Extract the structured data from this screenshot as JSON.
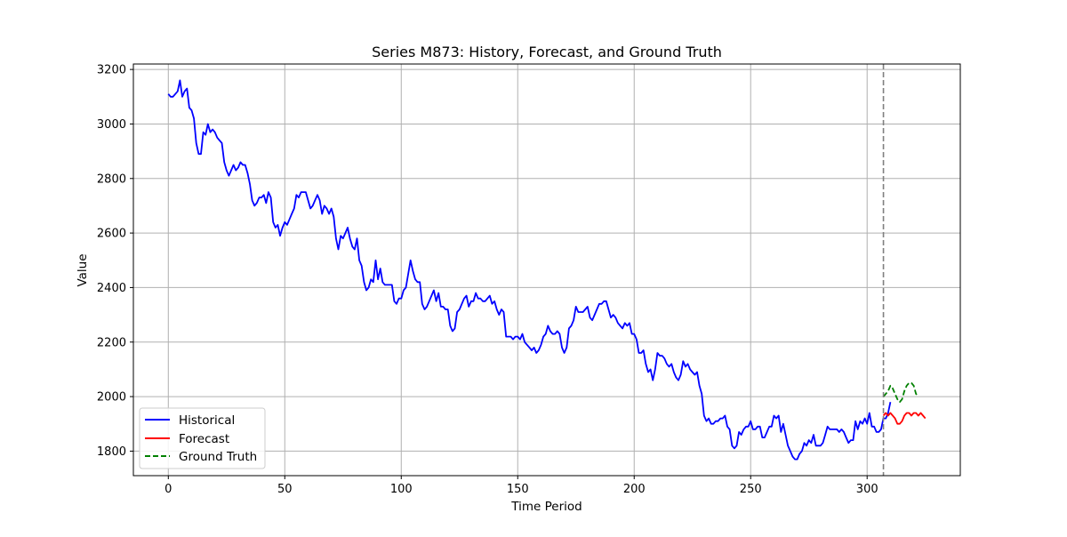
{
  "chart_data": {
    "type": "line",
    "title": "Series M873: History, Forecast, and Ground Truth",
    "xlabel": "Time Period",
    "ylabel": "Value",
    "xlim": [
      -15,
      340
    ],
    "ylim": [
      1710,
      3220
    ],
    "xticks": [
      0,
      50,
      100,
      150,
      200,
      250,
      300
    ],
    "yticks": [
      1800,
      2000,
      2200,
      2400,
      2600,
      2800,
      3000,
      3200
    ],
    "grid": true,
    "legend_position": "lower-left",
    "vline_x": 307,
    "series": [
      {
        "name": "Historical",
        "color": "#0000ff",
        "style": "solid",
        "x_start": 0,
        "values": [
          3110,
          3100,
          3100,
          3110,
          3120,
          3160,
          3100,
          3120,
          3130,
          3060,
          3050,
          3020,
          2930,
          2890,
          2890,
          2970,
          2960,
          3000,
          2970,
          2980,
          2970,
          2950,
          2940,
          2930,
          2860,
          2830,
          2810,
          2830,
          2850,
          2830,
          2840,
          2860,
          2850,
          2850,
          2820,
          2780,
          2720,
          2700,
          2710,
          2730,
          2730,
          2740,
          2710,
          2750,
          2730,
          2640,
          2620,
          2630,
          2590,
          2620,
          2640,
          2630,
          2650,
          2670,
          2690,
          2740,
          2730,
          2750,
          2750,
          2750,
          2720,
          2690,
          2700,
          2720,
          2740,
          2720,
          2670,
          2700,
          2690,
          2670,
          2690,
          2660,
          2580,
          2540,
          2590,
          2580,
          2600,
          2620,
          2580,
          2550,
          2540,
          2580,
          2500,
          2480,
          2420,
          2390,
          2400,
          2430,
          2420,
          2500,
          2430,
          2470,
          2420,
          2410,
          2410,
          2410,
          2410,
          2350,
          2340,
          2360,
          2360,
          2390,
          2400,
          2450,
          2500,
          2460,
          2430,
          2420,
          2420,
          2340,
          2320,
          2330,
          2350,
          2370,
          2390,
          2350,
          2380,
          2330,
          2330,
          2320,
          2320,
          2260,
          2240,
          2250,
          2310,
          2320,
          2340,
          2360,
          2370,
          2330,
          2350,
          2350,
          2380,
          2360,
          2360,
          2350,
          2350,
          2360,
          2370,
          2340,
          2350,
          2320,
          2300,
          2320,
          2310,
          2220,
          2220,
          2220,
          2210,
          2220,
          2220,
          2210,
          2230,
          2200,
          2190,
          2180,
          2170,
          2180,
          2160,
          2170,
          2190,
          2220,
          2230,
          2260,
          2240,
          2230,
          2230,
          2240,
          2230,
          2180,
          2160,
          2180,
          2250,
          2260,
          2280,
          2330,
          2310,
          2310,
          2310,
          2320,
          2330,
          2290,
          2280,
          2300,
          2320,
          2340,
          2340,
          2350,
          2350,
          2320,
          2290,
          2300,
          2290,
          2270,
          2260,
          2250,
          2270,
          2260,
          2270,
          2230,
          2230,
          2210,
          2160,
          2160,
          2170,
          2120,
          2090,
          2100,
          2060,
          2100,
          2160,
          2150,
          2150,
          2140,
          2120,
          2110,
          2120,
          2090,
          2070,
          2060,
          2080,
          2130,
          2110,
          2120,
          2100,
          2090,
          2080,
          2090,
          2040,
          2010,
          1930,
          1910,
          1920,
          1900,
          1900,
          1910,
          1910,
          1920,
          1920,
          1930,
          1890,
          1880,
          1820,
          1810,
          1820,
          1870,
          1860,
          1880,
          1890,
          1890,
          1910,
          1880,
          1880,
          1890,
          1890,
          1850,
          1850,
          1870,
          1890,
          1890,
          1930,
          1920,
          1930,
          1870,
          1900,
          1860,
          1820,
          1800,
          1780,
          1770,
          1770,
          1790,
          1800,
          1830,
          1820,
          1840,
          1830,
          1860,
          1820,
          1820,
          1820,
          1830,
          1860,
          1890,
          1880,
          1880,
          1880,
          1880,
          1870,
          1880,
          1870,
          1850,
          1830,
          1840,
          1840,
          1910,
          1880,
          1910,
          1900,
          1920,
          1900,
          1940,
          1890,
          1890,
          1870,
          1870,
          1880,
          1920,
          1920,
          1940,
          1980
        ]
      },
      {
        "name": "Forecast",
        "color": "#ff0000",
        "style": "solid",
        "x_start": 307,
        "values": [
          1930,
          1940,
          1930,
          1940,
          1930,
          1920,
          1900,
          1900,
          1910,
          1930,
          1940,
          1940,
          1930,
          1940,
          1940,
          1930,
          1940,
          1930,
          1920
        ]
      },
      {
        "name": "Ground Truth",
        "color": "#008000",
        "style": "dashed",
        "x_start": 307,
        "values": [
          2000,
          2010,
          2020,
          2040,
          2030,
          2010,
          1990,
          1980,
          1990,
          2020,
          2040,
          2050,
          2050,
          2040,
          2010,
          2000
        ]
      }
    ]
  }
}
